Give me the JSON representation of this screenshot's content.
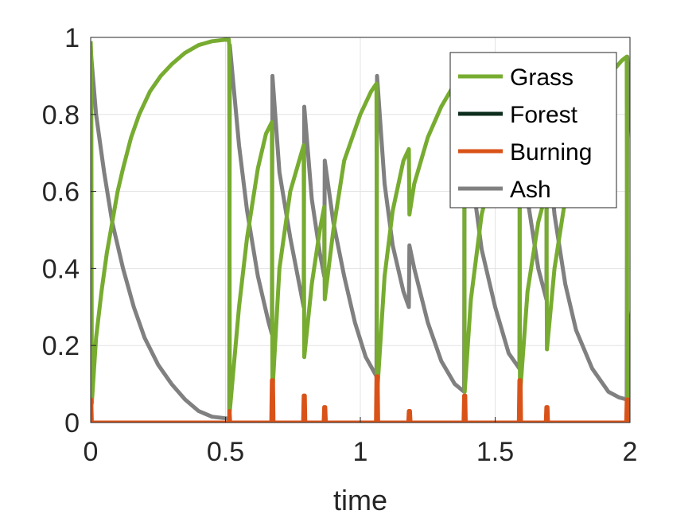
{
  "chart_data": {
    "type": "line",
    "title": "",
    "xlabel": "time",
    "ylabel": "",
    "xlim": [
      0,
      2
    ],
    "ylim": [
      0,
      1
    ],
    "xticks": [
      0,
      0.5,
      1,
      1.5,
      2
    ],
    "xtick_labels": [
      "0",
      "0.5",
      "1",
      "1.5",
      "2"
    ],
    "yticks": [
      0,
      0.2,
      0.4,
      0.6,
      0.8,
      1
    ],
    "ytick_labels": [
      "0",
      "0.2",
      "0.4",
      "0.6",
      "0.8",
      "1"
    ],
    "grid": true,
    "legend_position": "top-right",
    "series": [
      {
        "name": "Grass",
        "color": "#77ac30",
        "points": [
          [
            0,
            0.99
          ],
          [
            0.002,
            0.95
          ],
          [
            0.004,
            0.05
          ],
          [
            0.02,
            0.22
          ],
          [
            0.04,
            0.34
          ],
          [
            0.06,
            0.44
          ],
          [
            0.08,
            0.52
          ],
          [
            0.1,
            0.6
          ],
          [
            0.12,
            0.66
          ],
          [
            0.15,
            0.74
          ],
          [
            0.18,
            0.8
          ],
          [
            0.22,
            0.86
          ],
          [
            0.26,
            0.9
          ],
          [
            0.3,
            0.93
          ],
          [
            0.35,
            0.96
          ],
          [
            0.4,
            0.98
          ],
          [
            0.45,
            0.99
          ],
          [
            0.512,
            0.995
          ],
          [
            0.514,
            0.98
          ],
          [
            0.516,
            0.03
          ],
          [
            0.55,
            0.3
          ],
          [
            0.58,
            0.48
          ],
          [
            0.62,
            0.66
          ],
          [
            0.65,
            0.75
          ],
          [
            0.672,
            0.78
          ],
          [
            0.674,
            0.08
          ],
          [
            0.7,
            0.4
          ],
          [
            0.74,
            0.6
          ],
          [
            0.79,
            0.72
          ],
          [
            0.792,
            0.17
          ],
          [
            0.82,
            0.36
          ],
          [
            0.85,
            0.5
          ],
          [
            0.866,
            0.56
          ],
          [
            0.868,
            0.32
          ],
          [
            0.9,
            0.5
          ],
          [
            0.94,
            0.68
          ],
          [
            1.0,
            0.8
          ],
          [
            1.04,
            0.86
          ],
          [
            1.06,
            0.88
          ],
          [
            1.062,
            0.07
          ],
          [
            1.09,
            0.38
          ],
          [
            1.12,
            0.55
          ],
          [
            1.16,
            0.68
          ],
          [
            1.18,
            0.71
          ],
          [
            1.182,
            0.54
          ],
          [
            1.2,
            0.62
          ],
          [
            1.25,
            0.74
          ],
          [
            1.3,
            0.82
          ],
          [
            1.35,
            0.88
          ],
          [
            1.385,
            0.92
          ],
          [
            1.387,
            0.08
          ],
          [
            1.41,
            0.32
          ],
          [
            1.45,
            0.54
          ],
          [
            1.5,
            0.68
          ],
          [
            1.56,
            0.8
          ],
          [
            1.59,
            0.84
          ],
          [
            1.592,
            0.07
          ],
          [
            1.62,
            0.34
          ],
          [
            1.66,
            0.52
          ],
          [
            1.69,
            0.6
          ],
          [
            1.692,
            0.19
          ],
          [
            1.72,
            0.4
          ],
          [
            1.76,
            0.58
          ],
          [
            1.8,
            0.72
          ],
          [
            1.86,
            0.84
          ],
          [
            1.92,
            0.9
          ],
          [
            1.97,
            0.94
          ],
          [
            1.988,
            0.95
          ],
          [
            1.99,
            0.03
          ],
          [
            2.0,
            0.25
          ],
          [
            2.01,
            0.32
          ]
        ]
      },
      {
        "name": "Forest",
        "color": "#0d2e1e",
        "points": [
          [
            0,
            0
          ],
          [
            2.01,
            0
          ]
        ]
      },
      {
        "name": "Burning",
        "color": "#d95319",
        "points": [
          [
            0,
            0
          ],
          [
            0.001,
            0
          ],
          [
            0.002,
            0.06
          ],
          [
            0.004,
            0
          ],
          [
            0.514,
            0
          ],
          [
            0.515,
            0.03
          ],
          [
            0.517,
            0
          ],
          [
            0.67,
            0
          ],
          [
            0.672,
            0.11
          ],
          [
            0.676,
            0.11
          ],
          [
            0.678,
            0
          ],
          [
            0.788,
            0
          ],
          [
            0.79,
            0.07
          ],
          [
            0.794,
            0.07
          ],
          [
            0.796,
            0
          ],
          [
            0.864,
            0
          ],
          [
            0.866,
            0.04
          ],
          [
            0.87,
            0.04
          ],
          [
            0.872,
            0
          ],
          [
            1.058,
            0
          ],
          [
            1.06,
            0.12
          ],
          [
            1.064,
            0.12
          ],
          [
            1.066,
            0
          ],
          [
            1.178,
            0
          ],
          [
            1.18,
            0.03
          ],
          [
            1.184,
            0.03
          ],
          [
            1.186,
            0
          ],
          [
            1.383,
            0
          ],
          [
            1.385,
            0.07
          ],
          [
            1.389,
            0.07
          ],
          [
            1.391,
            0
          ],
          [
            1.588,
            0
          ],
          [
            1.59,
            0.11
          ],
          [
            1.594,
            0.11
          ],
          [
            1.596,
            0
          ],
          [
            1.688,
            0
          ],
          [
            1.69,
            0.04
          ],
          [
            1.694,
            0.04
          ],
          [
            1.696,
            0
          ],
          [
            1.986,
            0
          ],
          [
            1.988,
            0.06
          ],
          [
            1.992,
            0.06
          ],
          [
            1.994,
            0
          ],
          [
            2.01,
            0
          ]
        ]
      },
      {
        "name": "Ash",
        "color": "#808080",
        "points": [
          [
            0,
            0.04
          ],
          [
            0.002,
            0.95
          ],
          [
            0.02,
            0.8
          ],
          [
            0.05,
            0.65
          ],
          [
            0.08,
            0.52
          ],
          [
            0.12,
            0.4
          ],
          [
            0.16,
            0.3
          ],
          [
            0.2,
            0.22
          ],
          [
            0.25,
            0.15
          ],
          [
            0.3,
            0.1
          ],
          [
            0.35,
            0.06
          ],
          [
            0.4,
            0.03
          ],
          [
            0.45,
            0.015
          ],
          [
            0.514,
            0.01
          ],
          [
            0.516,
            0.98
          ],
          [
            0.55,
            0.72
          ],
          [
            0.58,
            0.55
          ],
          [
            0.62,
            0.38
          ],
          [
            0.66,
            0.26
          ],
          [
            0.672,
            0.23
          ],
          [
            0.674,
            0.9
          ],
          [
            0.7,
            0.65
          ],
          [
            0.74,
            0.48
          ],
          [
            0.79,
            0.3
          ],
          [
            0.792,
            0.82
          ],
          [
            0.82,
            0.58
          ],
          [
            0.85,
            0.44
          ],
          [
            0.866,
            0.38
          ],
          [
            0.868,
            0.68
          ],
          [
            0.88,
            0.62
          ],
          [
            0.9,
            0.52
          ],
          [
            0.94,
            0.38
          ],
          [
            0.98,
            0.26
          ],
          [
            1.02,
            0.17
          ],
          [
            1.06,
            0.12
          ],
          [
            1.062,
            0.9
          ],
          [
            1.09,
            0.62
          ],
          [
            1.12,
            0.46
          ],
          [
            1.16,
            0.34
          ],
          [
            1.18,
            0.3
          ],
          [
            1.182,
            0.46
          ],
          [
            1.2,
            0.4
          ],
          [
            1.25,
            0.26
          ],
          [
            1.3,
            0.16
          ],
          [
            1.35,
            0.1
          ],
          [
            1.385,
            0.08
          ],
          [
            1.387,
            0.93
          ],
          [
            1.41,
            0.66
          ],
          [
            1.45,
            0.45
          ],
          [
            1.5,
            0.3
          ],
          [
            1.55,
            0.18
          ],
          [
            1.59,
            0.14
          ],
          [
            1.592,
            0.9
          ],
          [
            1.62,
            0.58
          ],
          [
            1.66,
            0.4
          ],
          [
            1.69,
            0.32
          ],
          [
            1.692,
            0.75
          ],
          [
            1.72,
            0.54
          ],
          [
            1.76,
            0.36
          ],
          [
            1.8,
            0.24
          ],
          [
            1.86,
            0.14
          ],
          [
            1.92,
            0.08
          ],
          [
            1.96,
            0.065
          ],
          [
            1.988,
            0.06
          ],
          [
            1.99,
            0.95
          ],
          [
            2.0,
            0.82
          ],
          [
            2.01,
            0.68
          ]
        ]
      }
    ]
  }
}
